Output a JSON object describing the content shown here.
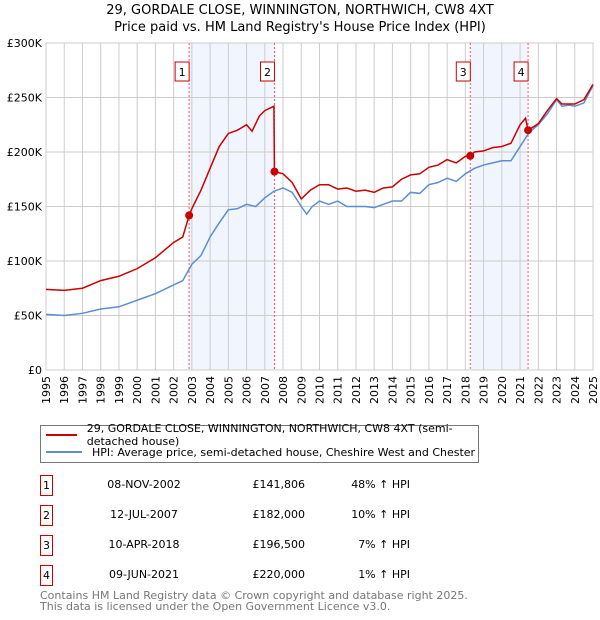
{
  "title": "29, GORDALE CLOSE, WINNINGTON, NORTHWICH, CW8 4XT",
  "subtitle": "Price paid vs. HM Land Registry's House Price Index (HPI)",
  "legend": [
    {
      "label": "29, GORDALE CLOSE, WINNINGTON, NORTHWICH, CW8 4XT (semi-detached house)",
      "color": "#cc0000"
    },
    {
      "label": "HPI: Average price, semi-detached house, Cheshire West and Chester",
      "color": "#5b8ed6"
    }
  ],
  "transactions": [
    {
      "num": "1",
      "date": "08-NOV-2002",
      "price": "£141,806",
      "hpi": "48% ↑ HPI"
    },
    {
      "num": "2",
      "date": "12-JUL-2007",
      "price": "£182,000",
      "hpi": "10% ↑ HPI"
    },
    {
      "num": "3",
      "date": "10-APR-2018",
      "price": "£196,500",
      "hpi": "7% ↑ HPI"
    },
    {
      "num": "4",
      "date": "09-JUN-2021",
      "price": "£220,000",
      "hpi": "1% ↑ HPI"
    }
  ],
  "footer": [
    "Contains HM Land Registry data © Crown copyright and database right 2025.",
    "This data is licensed under the Open Government Licence v3.0."
  ],
  "chart_data": {
    "type": "line",
    "xlim": [
      1995,
      2025
    ],
    "ylim": [
      0,
      300000
    ],
    "yticks": [
      {
        "v": 0,
        "l": "£0"
      },
      {
        "v": 50000,
        "l": "£50K"
      },
      {
        "v": 100000,
        "l": "£100K"
      },
      {
        "v": 150000,
        "l": "£150K"
      },
      {
        "v": 200000,
        "l": "£200K"
      },
      {
        "v": 250000,
        "l": "£250K"
      },
      {
        "v": 300000,
        "l": "£300K"
      }
    ],
    "xticks": [
      "1995",
      "1996",
      "1997",
      "1998",
      "1999",
      "2000",
      "2001",
      "2002",
      "2003",
      "2004",
      "2005",
      "2006",
      "2007",
      "2008",
      "2009",
      "2010",
      "2011",
      "2012",
      "2013",
      "2014",
      "2015",
      "2016",
      "2017",
      "2018",
      "2019",
      "2020",
      "2021",
      "2022",
      "2023",
      "2024",
      "2025"
    ],
    "shaded_periods": [
      [
        2002.85,
        2007.53
      ],
      [
        2018.27,
        2021.44
      ]
    ],
    "markers": [
      {
        "label": "1",
        "x": 2002.85,
        "y": 141806
      },
      {
        "label": "2",
        "x": 2007.53,
        "y": 182000
      },
      {
        "label": "3",
        "x": 2018.27,
        "y": 196500
      },
      {
        "label": "4",
        "x": 2021.44,
        "y": 220000
      }
    ],
    "series": [
      {
        "name": "price",
        "color": "#cc0000",
        "points": [
          [
            1995,
            74
          ],
          [
            1996,
            73
          ],
          [
            1997,
            75
          ],
          [
            1998,
            82
          ],
          [
            1999,
            86
          ],
          [
            2000,
            93
          ],
          [
            2001,
            103
          ],
          [
            2002,
            117
          ],
          [
            2002.5,
            122
          ],
          [
            2002.85,
            141.8
          ],
          [
            2003,
            148
          ],
          [
            2003.5,
            165
          ],
          [
            2004,
            185
          ],
          [
            2004.5,
            205
          ],
          [
            2005,
            217
          ],
          [
            2005.5,
            220
          ],
          [
            2006,
            225
          ],
          [
            2006.3,
            219
          ],
          [
            2006.7,
            233
          ],
          [
            2007,
            238
          ],
          [
            2007.5,
            242
          ],
          [
            2007.53,
            182
          ],
          [
            2008,
            180
          ],
          [
            2008.5,
            172
          ],
          [
            2009,
            157
          ],
          [
            2009.5,
            165
          ],
          [
            2010,
            170
          ],
          [
            2010.5,
            170
          ],
          [
            2011,
            166
          ],
          [
            2011.5,
            167
          ],
          [
            2012,
            164
          ],
          [
            2012.5,
            165
          ],
          [
            2013,
            163
          ],
          [
            2013.5,
            167
          ],
          [
            2014,
            168
          ],
          [
            2014.5,
            175
          ],
          [
            2015,
            179
          ],
          [
            2015.5,
            180
          ],
          [
            2016,
            186
          ],
          [
            2016.5,
            188
          ],
          [
            2017,
            193
          ],
          [
            2017.5,
            190
          ],
          [
            2018,
            196
          ],
          [
            2018.27,
            196.5
          ],
          [
            2018.5,
            200
          ],
          [
            2019,
            201
          ],
          [
            2019.5,
            204
          ],
          [
            2020,
            205
          ],
          [
            2020.5,
            208
          ],
          [
            2021,
            225
          ],
          [
            2021.3,
            231
          ],
          [
            2021.44,
            220
          ],
          [
            2022,
            226
          ],
          [
            2022.5,
            238
          ],
          [
            2023,
            249
          ],
          [
            2023.3,
            244
          ],
          [
            2024,
            244
          ],
          [
            2024.5,
            248
          ],
          [
            2025,
            262
          ]
        ]
      },
      {
        "name": "hpi",
        "color": "#5b8ed6",
        "points": [
          [
            1995,
            51
          ],
          [
            1996,
            50
          ],
          [
            1997,
            52
          ],
          [
            1998,
            56
          ],
          [
            1999,
            58
          ],
          [
            2000,
            64
          ],
          [
            2001,
            70
          ],
          [
            2002,
            78
          ],
          [
            2002.5,
            82
          ],
          [
            2003,
            97
          ],
          [
            2003.5,
            105
          ],
          [
            2004,
            122
          ],
          [
            2004.5,
            135
          ],
          [
            2005,
            147
          ],
          [
            2005.5,
            148
          ],
          [
            2006,
            152
          ],
          [
            2006.5,
            150
          ],
          [
            2007,
            158
          ],
          [
            2007.5,
            164
          ],
          [
            2008,
            167
          ],
          [
            2008.5,
            163
          ],
          [
            2009,
            150
          ],
          [
            2009.3,
            143
          ],
          [
            2009.6,
            150
          ],
          [
            2010,
            155
          ],
          [
            2010.5,
            152
          ],
          [
            2011,
            155
          ],
          [
            2011.5,
            150
          ],
          [
            2012,
            150
          ],
          [
            2012.5,
            150
          ],
          [
            2013,
            149
          ],
          [
            2013.5,
            152
          ],
          [
            2014,
            155
          ],
          [
            2014.5,
            155
          ],
          [
            2015,
            163
          ],
          [
            2015.5,
            162
          ],
          [
            2016,
            170
          ],
          [
            2016.5,
            172
          ],
          [
            2017,
            176
          ],
          [
            2017.5,
            173
          ],
          [
            2018,
            180
          ],
          [
            2018.5,
            185
          ],
          [
            2019,
            188
          ],
          [
            2019.5,
            190
          ],
          [
            2020,
            192
          ],
          [
            2020.5,
            192
          ],
          [
            2021,
            205
          ],
          [
            2021.5,
            218
          ],
          [
            2022,
            225
          ],
          [
            2022.5,
            235
          ],
          [
            2023,
            248
          ],
          [
            2023.3,
            242
          ],
          [
            2023.7,
            243
          ],
          [
            2024,
            242
          ],
          [
            2024.5,
            245
          ],
          [
            2025,
            261
          ]
        ]
      }
    ]
  }
}
